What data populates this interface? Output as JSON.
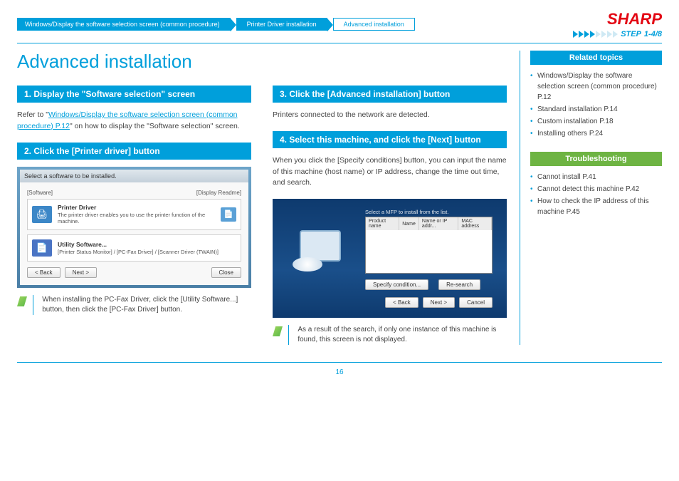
{
  "brand": "SHARP",
  "step_indicator": {
    "label": "STEP",
    "value": "1-4/8",
    "filled_count": 4,
    "total_count": 8
  },
  "breadcrumbs": [
    {
      "label": "Windows/Display the software selection screen (common procedure)",
      "active": true
    },
    {
      "label": "Printer Driver installation",
      "active": true
    },
    {
      "label": "Advanced installation",
      "active": false
    }
  ],
  "title": "Advanced installation",
  "left": {
    "step1": {
      "bar": "1.   Display the \"Software selection\" screen",
      "text_prefix": "Refer to \"",
      "link": "Windows/Display the software selection screen (common procedure) P.12",
      "text_suffix": "\" on how to display the \"Software selection\" screen."
    },
    "step2": {
      "bar": "2.   Click the [Printer driver] button",
      "sc": {
        "titlebar": "Select a software to be installed.",
        "head_left": "[Software]",
        "head_right": "[Display Readme]",
        "item1_title": "Printer Driver",
        "item1_desc": "The printer driver enables you to use the printer function of the machine.",
        "item2_title": "Utility Software...",
        "item2_desc": "[Printer Status Monitor] / [PC-Fax Driver] / [Scanner Driver (TWAIN)]",
        "btn_back": "< Back",
        "btn_next": "Next >",
        "btn_close": "Close"
      },
      "note": "When installing the PC-Fax Driver, click the [Utility Software...] button, then click the [PC-Fax Driver] button."
    }
  },
  "right": {
    "step3": {
      "bar": "3.   Click the [Advanced installation] button",
      "text": "Printers connected to the network are detected."
    },
    "step4": {
      "bar": "4.   Select this machine, and click the [Next] button",
      "text": "When you click the [Specify conditions] button, you can input the name of this machine (host name) or IP address, change the time out time, and search.",
      "sc": {
        "header_hint": "Select a MFP to install from the list.",
        "cols": [
          "Product name",
          "Name",
          "Name or IP addr...",
          "MAC address"
        ],
        "btn_specify": "Specify condition...",
        "btn_research": "Re-search",
        "btn_back": "< Back",
        "btn_next": "Next >",
        "btn_cancel": "Cancel"
      },
      "note": "As a result of the search, if only one instance of this machine is found, this screen is not displayed."
    }
  },
  "sidebar": {
    "related_header": "Related topics",
    "related": [
      "Windows/Display the software selection screen (common procedure) P.12",
      "Standard installation P.14",
      "Custom installation P.18",
      "Installing others P.24"
    ],
    "trouble_header": "Troubleshooting",
    "trouble": [
      "Cannot install P.41",
      "Cannot detect this machine P.42",
      "How to check the IP address of this machine P.45"
    ]
  },
  "page_number": "16"
}
